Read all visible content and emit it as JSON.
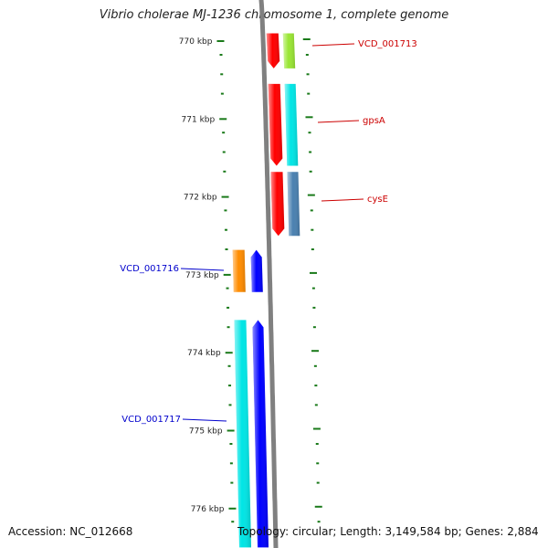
{
  "title": "Vibrio cholerae MJ-1236 chromosome 1, complete genome",
  "accession": "Accession: NC_012668",
  "topology": "Topology: circular; Length: 3,149,584 bp; Genes: 2,884",
  "colors": {
    "backbone": "#808080",
    "tick": "#1a7a1a",
    "label_forward": "#cc0000",
    "label_reverse": "#0000cc"
  },
  "ticks": [
    {
      "label": "770 kbp"
    },
    {
      "label": "771 kbp"
    },
    {
      "label": "772 kbp"
    },
    {
      "label": "773 kbp"
    },
    {
      "label": "774 kbp"
    },
    {
      "label": "775 kbp"
    },
    {
      "label": "776 kbp"
    }
  ],
  "gene_labels": [
    {
      "text": "VCD_001713",
      "strand": "forward"
    },
    {
      "text": "gpsA",
      "strand": "forward"
    },
    {
      "text": "cysE",
      "strand": "forward"
    },
    {
      "text": "VCD_001716",
      "strand": "reverse"
    },
    {
      "text": "VCD_001717",
      "strand": "reverse"
    }
  ],
  "features": [
    {
      "strand": "forward",
      "track": "outer",
      "start": 769.9,
      "end": 770.35,
      "color": "#ff0000"
    },
    {
      "strand": "forward",
      "track": "inner",
      "start": 769.9,
      "end": 770.35,
      "color": "#99e633"
    },
    {
      "strand": "forward",
      "track": "outer",
      "start": 770.55,
      "end": 771.6,
      "color": "#ff0000"
    },
    {
      "strand": "forward",
      "track": "inner",
      "start": 770.55,
      "end": 771.6,
      "color": "#00e5e5"
    },
    {
      "strand": "forward",
      "track": "outer",
      "start": 771.68,
      "end": 772.5,
      "color": "#ff0000"
    },
    {
      "strand": "forward",
      "track": "inner",
      "start": 771.68,
      "end": 772.5,
      "color": "#4a80b0"
    },
    {
      "strand": "reverse",
      "track": "outer",
      "start": 772.68,
      "end": 773.22,
      "color": "#ff8c00"
    },
    {
      "strand": "reverse",
      "track": "inner",
      "start": 772.68,
      "end": 773.22,
      "color": "#0000ff"
    },
    {
      "strand": "reverse",
      "track": "outer",
      "start": 773.58,
      "end": 776.5,
      "color": "#00e5e5"
    },
    {
      "strand": "reverse",
      "track": "inner",
      "start": 773.58,
      "end": 776.5,
      "color": "#0000ff"
    }
  ]
}
